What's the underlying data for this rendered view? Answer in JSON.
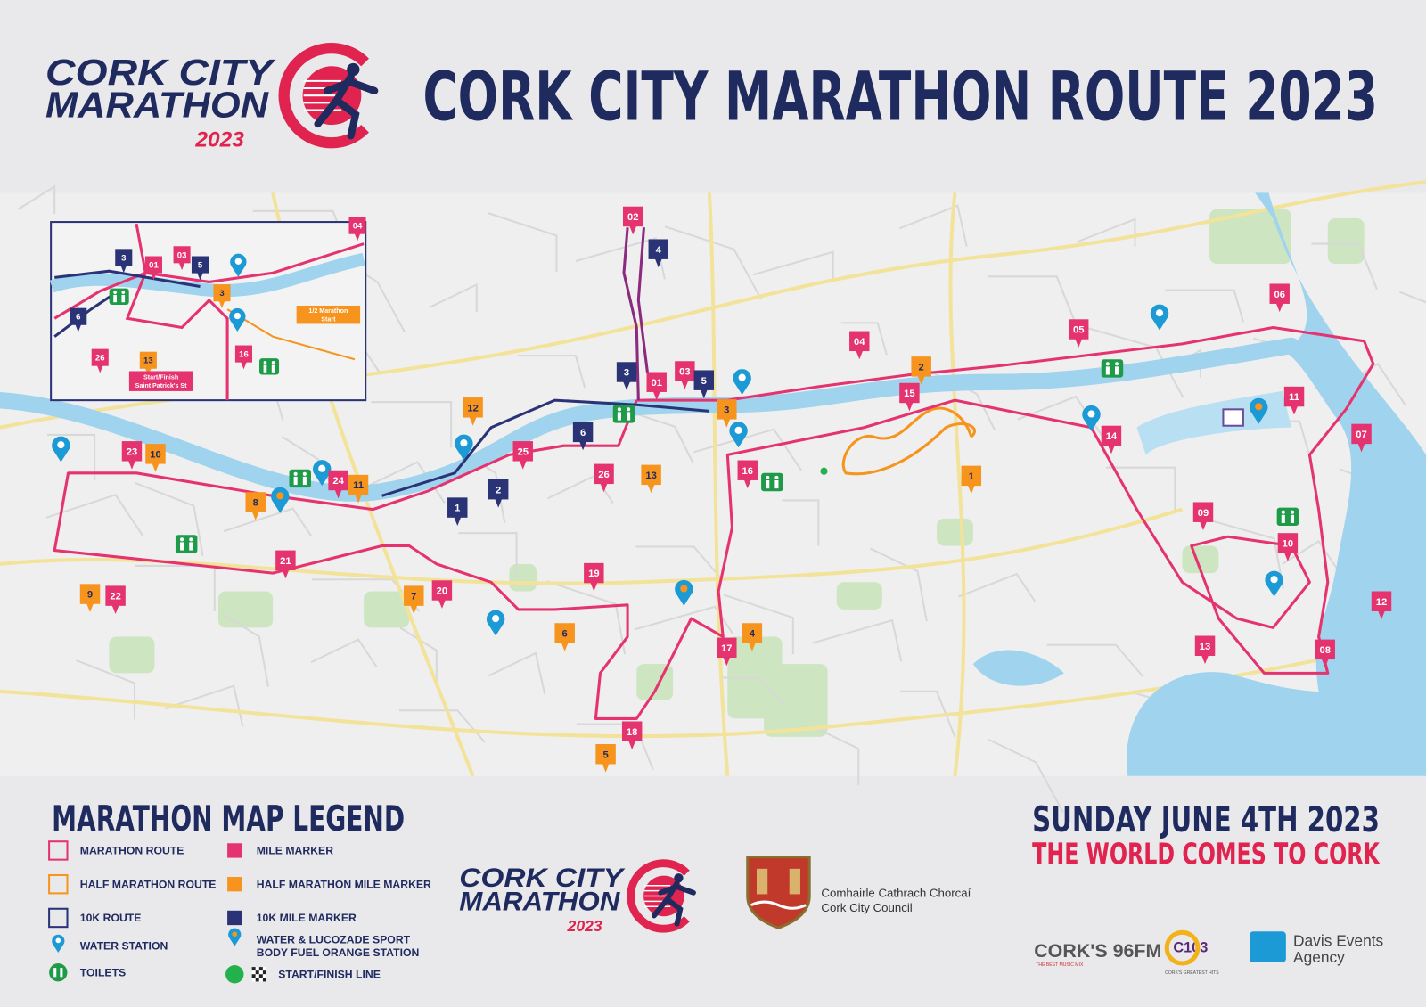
{
  "header": {
    "logo": {
      "line1": "CORK CITY",
      "line2": "MARATHON",
      "year": "2023"
    },
    "title": "CORK CITY MARATHON ROUTE 2023"
  },
  "map": {
    "marathon_markers": [
      "01",
      "02",
      "03",
      "04",
      "05",
      "06",
      "07",
      "08",
      "09",
      "10",
      "11",
      "12",
      "13",
      "14",
      "15",
      "16",
      "17",
      "18",
      "19",
      "20",
      "21",
      "22",
      "23",
      "24",
      "25",
      "26"
    ],
    "half_markers": [
      "1",
      "2",
      "3",
      "4",
      "5",
      "6",
      "7",
      "8",
      "9",
      "10",
      "11",
      "12",
      "13"
    ],
    "tenk_markers": [
      "1",
      "2",
      "3",
      "4",
      "5",
      "6"
    ],
    "inset": {
      "marathon_markers": [
        "01",
        "03",
        "26",
        "16",
        "04"
      ],
      "half_markers": [
        "3",
        "13"
      ],
      "tenk_markers": [
        "3",
        "5",
        "6"
      ],
      "start_note": [
        "Start/Finish",
        "Saint Patrick's St"
      ],
      "half_start_note": [
        "1/2 Marathon",
        "Start"
      ]
    }
  },
  "legend": {
    "title": "MARATHON MAP LEGEND",
    "items": [
      {
        "lines": [
          "MARATHON ROUTE"
        ]
      },
      {
        "lines": [
          "MILE MARKER"
        ]
      },
      {
        "lines": [
          "HALF MARATHON ROUTE"
        ]
      },
      {
        "lines": [
          "HALF MARATHON MILE MARKER"
        ]
      },
      {
        "lines": [
          "10K ROUTE"
        ]
      },
      {
        "lines": [
          "10K MILE MARKER"
        ]
      },
      {
        "lines": [
          "WATER STATION"
        ]
      },
      {
        "lines": [
          "WATER & LUCOZADE SPORT",
          "BODY FUEL ORANGE STATION"
        ]
      },
      {
        "lines": [
          "TOILETS"
        ]
      },
      {
        "lines": [
          "START/FINISH LINE"
        ]
      }
    ]
  },
  "event": {
    "date": "SUNDAY JUNE 4TH 2023",
    "tagline": "THE WORLD COMES TO CORK"
  },
  "council": {
    "irish": "Comhairle Cathrach Chorcaí",
    "english": "Cork City Council"
  },
  "sponsors": {
    "radio1": {
      "name": "CORK'S 96FM",
      "tagline": "THE BEST MUSIC MIX"
    },
    "radio2": {
      "name": "C103",
      "tagline": "CORK'S GREATEST HITS"
    },
    "agency": {
      "lines": [
        "Davis Events",
        "Agency"
      ]
    }
  }
}
